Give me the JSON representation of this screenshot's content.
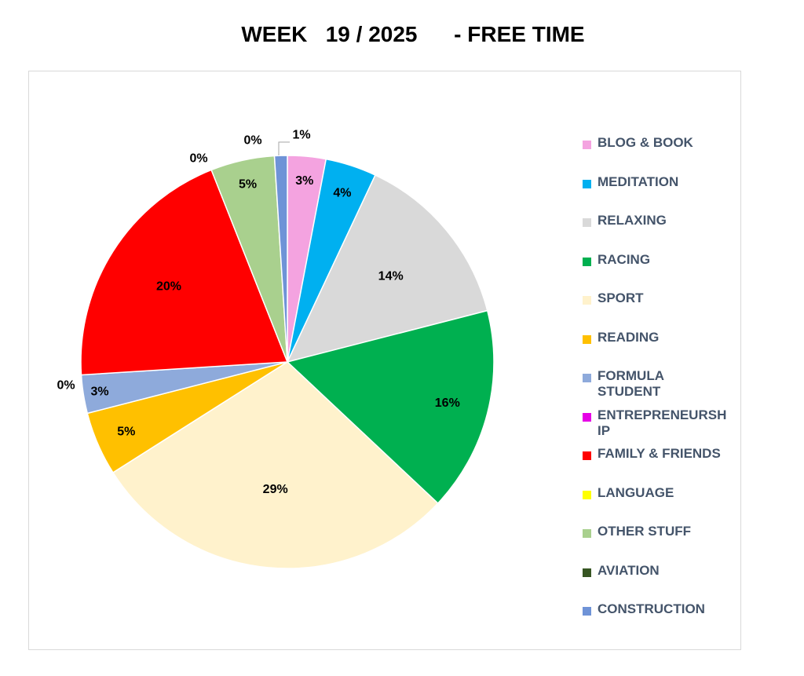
{
  "chart_data": {
    "type": "pie",
    "title": "WEEK   19 / 2025      - FREE TIME",
    "legend_position": "right",
    "slices": [
      {
        "label": "BLOG & BOOK",
        "percent": 3,
        "display": "3%",
        "color": "#f4a3e0"
      },
      {
        "label": "MEDITATION",
        "percent": 4,
        "display": "4%",
        "color": "#00b0f0"
      },
      {
        "label": "RELAXING",
        "percent": 14,
        "display": "14%",
        "color": "#d9d9d9"
      },
      {
        "label": "RACING",
        "percent": 16,
        "display": "16%",
        "color": "#00b050"
      },
      {
        "label": "SPORT",
        "percent": 29,
        "display": "29%",
        "color": "#fff2cc"
      },
      {
        "label": "READING",
        "percent": 5,
        "display": "5%",
        "color": "#ffc000"
      },
      {
        "label": "FORMULA STUDENT",
        "percent": 3,
        "display": "3%",
        "color": "#8eaadb"
      },
      {
        "label": "ENTREPRENEURSHIP",
        "percent": 0,
        "display": "0%",
        "color": "#e600e6"
      },
      {
        "label": "FAMILY & FRIENDS",
        "percent": 20,
        "display": "20%",
        "color": "#ff0000"
      },
      {
        "label": "LANGUAGE",
        "percent": 0,
        "display": "0%",
        "color": "#ffff00"
      },
      {
        "label": "OTHER STUFF",
        "percent": 5,
        "display": "5%",
        "color": "#a9d08e"
      },
      {
        "label": "AVIATION",
        "percent": 0,
        "display": "0%",
        "color": "#375623"
      },
      {
        "label": "CONSTRUCTION",
        "percent": 1,
        "display": "1%",
        "color": "#6f93d7"
      }
    ]
  }
}
